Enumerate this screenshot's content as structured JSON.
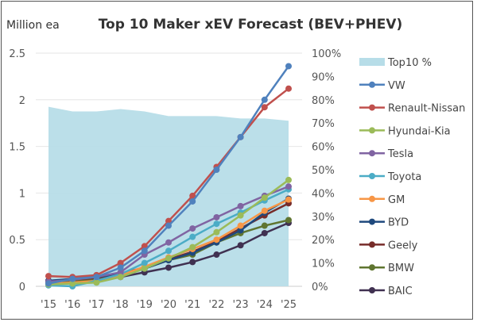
{
  "chart_data": {
    "type": "line",
    "title": "Top 10 Maker xEV Forecast (BEV+PHEV)",
    "ylabel": "Million ea",
    "x": [
      "'15",
      "'16",
      "'17",
      "'18",
      "'19",
      "'20",
      "'21",
      "'22",
      "'23",
      "'24",
      "'25"
    ],
    "ylim": [
      0,
      2.5
    ],
    "yticks": [
      "0",
      "0.5",
      "1",
      "1.5",
      "2",
      "2.5"
    ],
    "y2lim": [
      0,
      100
    ],
    "y2ticks": [
      "0%",
      "10%",
      "20%",
      "30%",
      "40%",
      "50%",
      "60%",
      "70%",
      "80%",
      "90%",
      "100%"
    ],
    "grid": true,
    "legend_position": "right",
    "area_series": {
      "name": "Top10 %",
      "axis": "right",
      "color": "#b7dde8",
      "values": [
        77,
        75,
        75,
        76,
        75,
        73,
        73,
        73,
        72,
        72,
        71
      ]
    },
    "series": [
      {
        "name": "VW",
        "color": "#4f81bd",
        "values": [
          0.03,
          0.08,
          0.1,
          0.2,
          0.38,
          0.65,
          0.91,
          1.25,
          1.6,
          2.0,
          2.36
        ]
      },
      {
        "name": "Renault-Nissan",
        "color": "#c0504d",
        "values": [
          0.11,
          0.1,
          0.12,
          0.25,
          0.43,
          0.7,
          0.97,
          1.28,
          1.6,
          1.92,
          2.12
        ]
      },
      {
        "name": "Hyundai-Kia",
        "color": "#9bbb59",
        "values": [
          0.02,
          0.03,
          0.04,
          0.1,
          0.19,
          0.3,
          0.42,
          0.58,
          0.76,
          0.95,
          1.14
        ]
      },
      {
        "name": "Tesla",
        "color": "#8064a2",
        "values": [
          0.05,
          0.07,
          0.1,
          0.15,
          0.34,
          0.47,
          0.62,
          0.74,
          0.86,
          0.97,
          1.07
        ]
      },
      {
        "name": "Toyota",
        "color": "#4bacc6",
        "values": [
          0.01,
          0.0,
          0.06,
          0.13,
          0.25,
          0.38,
          0.53,
          0.67,
          0.79,
          0.92,
          1.04
        ]
      },
      {
        "name": "GM",
        "color": "#f79646",
        "values": [
          0.03,
          0.04,
          0.06,
          0.12,
          0.21,
          0.31,
          0.4,
          0.5,
          0.65,
          0.81,
          0.93
        ]
      },
      {
        "name": "BYD",
        "color": "#1f497d",
        "values": [
          0.06,
          0.08,
          0.1,
          0.13,
          0.19,
          0.28,
          0.36,
          0.47,
          0.6,
          0.79,
          0.94
        ]
      },
      {
        "name": "Geely",
        "color": "#772c2a",
        "values": [
          0.06,
          0.07,
          0.09,
          0.14,
          0.2,
          0.29,
          0.37,
          0.48,
          0.62,
          0.76,
          0.89
        ]
      },
      {
        "name": "BMW",
        "color": "#5f7530",
        "values": [
          0.04,
          0.06,
          0.08,
          0.13,
          0.19,
          0.28,
          0.34,
          0.47,
          0.57,
          0.65,
          0.71
        ]
      },
      {
        "name": "BAIC",
        "color": "#403151",
        "values": [
          0.02,
          0.04,
          0.06,
          0.1,
          0.15,
          0.2,
          0.26,
          0.34,
          0.44,
          0.57,
          0.68
        ]
      }
    ]
  }
}
